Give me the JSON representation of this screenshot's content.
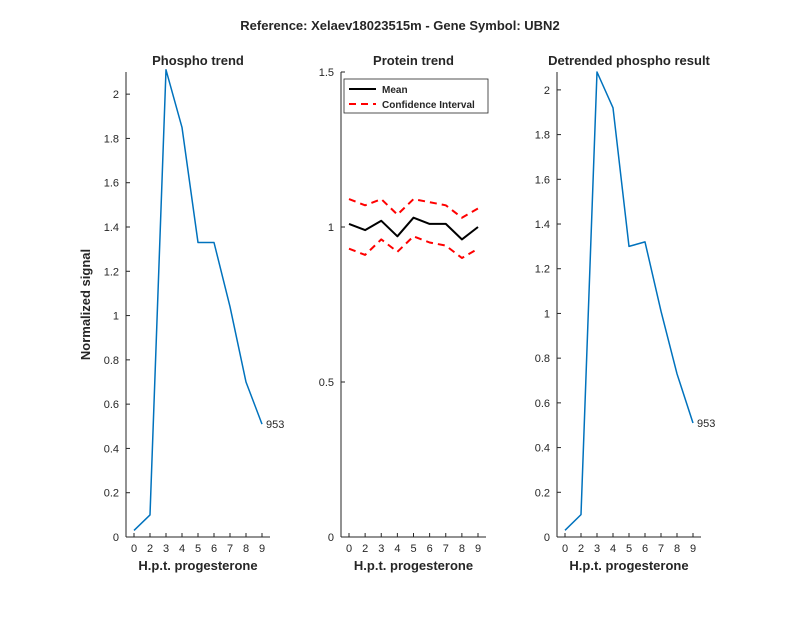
{
  "figure_title": "Reference:  Xelaev18023515m - Gene Symbol:  UBN2",
  "colors": {
    "series": "#0072bd",
    "mean": "#000000",
    "ci": "#ff0000",
    "axis": "#262626"
  },
  "chart_data": [
    {
      "type": "line",
      "title": "Phospho trend",
      "xlabel": "H.p.t. progesterone",
      "ylabel": "Normalized signal",
      "x_ticks": [
        "0",
        "2",
        "3",
        "4",
        "5",
        "6",
        "7",
        "8",
        "9"
      ],
      "y_ticks": [
        "0",
        "0.2",
        "0.4",
        "0.6",
        "0.8",
        "1",
        "1.2",
        "1.4",
        "1.6",
        "1.8",
        "2"
      ],
      "ylim": [
        0,
        2.1
      ],
      "series": [
        {
          "values": [
            0.03,
            0.1,
            2.11,
            1.85,
            1.33,
            1.33,
            1.04,
            0.7,
            0.51
          ]
        }
      ],
      "annotation": {
        "text": "953",
        "at_index": 8
      }
    },
    {
      "type": "line",
      "title": "Protein trend",
      "xlabel": "H.p.t. progesterone",
      "ylabel": "",
      "x_ticks": [
        "0",
        "2",
        "3",
        "4",
        "5",
        "6",
        "7",
        "8",
        "9"
      ],
      "y_ticks": [
        "0",
        "0.5",
        "1",
        "1.5"
      ],
      "ylim": [
        0,
        1.5
      ],
      "legend_position": "top-right",
      "series": [
        {
          "name": "Mean",
          "style": "solid",
          "values": [
            1.01,
            0.99,
            1.02,
            0.97,
            1.03,
            1.01,
            1.01,
            0.96,
            1.0
          ]
        },
        {
          "name": "Confidence Interval",
          "style": "dashed",
          "values": [
            1.09,
            1.07,
            1.09,
            1.04,
            1.09,
            1.08,
            1.07,
            1.03,
            1.06
          ]
        },
        {
          "style": "dashed",
          "values": [
            0.93,
            0.91,
            0.96,
            0.92,
            0.97,
            0.95,
            0.94,
            0.9,
            0.93
          ]
        }
      ]
    },
    {
      "type": "line",
      "title": "Detrended phospho result",
      "xlabel": "H.p.t. progesterone",
      "ylabel": "",
      "x_ticks": [
        "0",
        "2",
        "3",
        "4",
        "5",
        "6",
        "7",
        "8",
        "9"
      ],
      "y_ticks": [
        "0",
        "0.2",
        "0.4",
        "0.6",
        "0.8",
        "1",
        "1.2",
        "1.4",
        "1.6",
        "1.8",
        "2"
      ],
      "ylim": [
        0,
        2.08
      ],
      "series": [
        {
          "values": [
            0.03,
            0.1,
            2.08,
            1.92,
            1.3,
            1.32,
            1.01,
            0.73,
            0.51
          ]
        }
      ],
      "annotation": {
        "text": "953",
        "at_index": 8
      }
    }
  ]
}
